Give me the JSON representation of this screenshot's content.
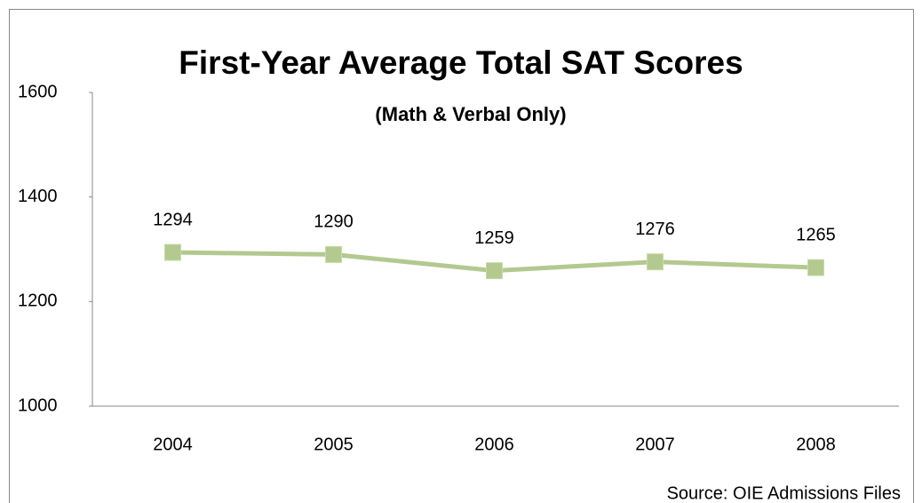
{
  "chart_data": {
    "type": "line",
    "title": "First-Year Average Total SAT Scores",
    "subtitle": "(Math & Verbal Only)",
    "source": "Source: OIE Admissions Files",
    "categories": [
      "2004",
      "2005",
      "2006",
      "2007",
      "2008"
    ],
    "series": [
      {
        "name": "Average Total SAT",
        "color": "#b3c98f",
        "values": [
          1294,
          1290,
          1259,
          1276,
          1265
        ]
      }
    ],
    "ylim": [
      1000,
      1600
    ],
    "yticks": [
      1000,
      1200,
      1400,
      1600
    ],
    "grid": false
  }
}
